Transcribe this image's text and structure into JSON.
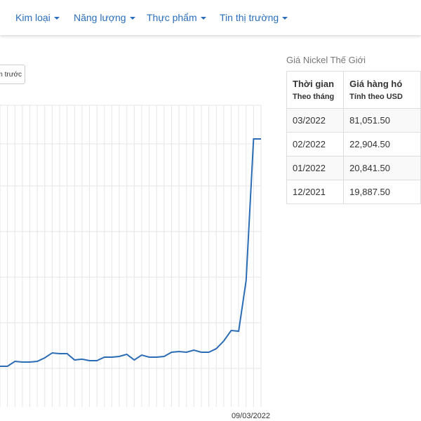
{
  "nav": {
    "items": [
      "Kim loại",
      "Năng lượng",
      "Thực phẩm",
      "Tin thị trường"
    ]
  },
  "button": {
    "label": "m trước"
  },
  "chart_data": {
    "type": "line",
    "categories": [
      null,
      null,
      null,
      null,
      null,
      null,
      null,
      null,
      null,
      null,
      null,
      null,
      null,
      null,
      null,
      null,
      null,
      null,
      null,
      null,
      null,
      null,
      null,
      null,
      null,
      null,
      null,
      null,
      null,
      null,
      null,
      null,
      null,
      null,
      null,
      "09/03/2022"
    ],
    "values": [
      19720,
      19720,
      20290,
      20210,
      20210,
      20290,
      20700,
      21270,
      21190,
      21190,
      20450,
      20540,
      20370,
      20370,
      20780,
      20780,
      20860,
      21110,
      20450,
      21020,
      20780,
      20780,
      20860,
      21350,
      21430,
      21350,
      21590,
      21350,
      21350,
      21760,
      22650,
      23870,
      23790,
      29650,
      46090,
      46090
    ],
    "color": "#2b6cb5",
    "ylim": [
      15000,
      50000
    ]
  },
  "table": {
    "title": "Giá Nickel Thế Giới",
    "headers": [
      [
        "Thời gian",
        "Theo tháng"
      ],
      [
        "Giá hàng hó",
        "Tính theo USD"
      ]
    ],
    "rows": [
      [
        "03/2022",
        "81,051.50"
      ],
      [
        "02/2022",
        "22,904.50"
      ],
      [
        "01/2022",
        "20,841.50"
      ],
      [
        "12/2021",
        "19,887.50"
      ]
    ]
  }
}
